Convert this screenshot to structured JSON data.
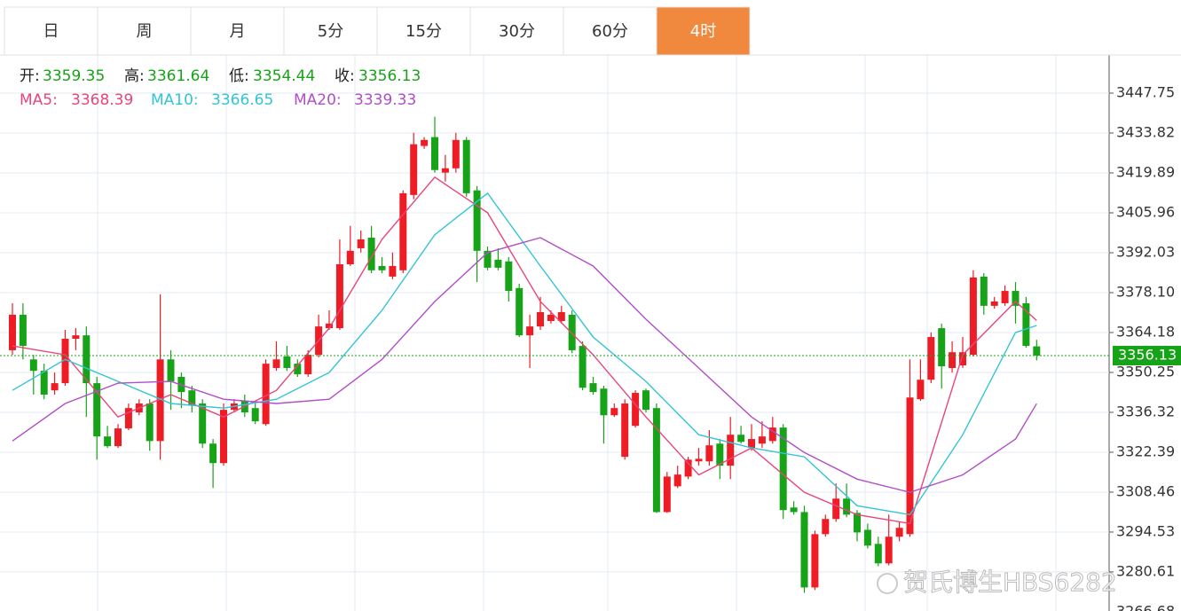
{
  "chart_data": {
    "type": "candlestick",
    "tabs": [
      "日",
      "周",
      "月",
      "5分",
      "15分",
      "30分",
      "60分",
      "4时"
    ],
    "active_tab": 7,
    "ohlc_labels": [
      "开:",
      "高:",
      "低:",
      "收:"
    ],
    "up_color": "#ee1c25",
    "down_color": "#17a317",
    "open": [
      3358.0,
      3370.4,
      3354.8,
      3350.8,
      3344.0,
      3346.5,
      3362.0,
      3363.2,
      3346.5,
      3327.9,
      3324.5,
      3330.7,
      3336.3,
      3339.4,
      3326.3,
      3354.8,
      3348.7,
      3344.0,
      3339.4,
      3325.4,
      3318.6,
      3337.2,
      3340.3,
      3337.8,
      3332.2,
      3351.8,
      3355.8,
      3353.3,
      3349.6,
      3356.4,
      3365.7,
      3365.7,
      3388.0,
      3393.6,
      3397.3,
      3387.4,
      3383.7,
      3385.9,
      3412.2,
      3429.3,
      3432.4,
      3420.0,
      3421.5,
      3431.4,
      3413.8,
      3392.7,
      3389.6,
      3389.0,
      3379.7,
      3363.2,
      3366.3,
      3368.2,
      3368.2,
      3370.4,
      3359.5,
      3346.5,
      3344.6,
      3335.3,
      3320.8,
      3331.6,
      3344.0,
      3337.8,
      3301.5,
      3310.5,
      3313.9,
      3319.2,
      3319.2,
      3325.4,
      3317.7,
      3328.5,
      3323.9,
      3325.4,
      3326.3,
      3331.0,
      3303.1,
      3301.5,
      3275.2,
      3293.8,
      3299.1,
      3306.2,
      3301.2,
      3295.3,
      3290.4,
      3283.6,
      3292.9,
      3293.8,
      3340.9,
      3347.7,
      3365.7,
      3351.8,
      3352.7,
      3356.4,
      3383.7,
      3373.5,
      3374.4,
      3378.7,
      3374.4,
      3359.35
    ],
    "high": [
      3374.4,
      3374.4,
      3356.4,
      3353.3,
      3350.2,
      3365.1,
      3365.7,
      3366.3,
      3348.7,
      3331.6,
      3332.2,
      3339.4,
      3340.9,
      3340.9,
      3377.5,
      3358.0,
      3350.2,
      3345.6,
      3340.9,
      3327.0,
      3339.4,
      3340.9,
      3342.5,
      3339.4,
      3354.8,
      3361.1,
      3359.5,
      3354.8,
      3358.0,
      3370.4,
      3371.9,
      3396.7,
      3401.4,
      3399.8,
      3401.4,
      3390.5,
      3392.1,
      3413.8,
      3433.9,
      3432.4,
      3439.5,
      3426.2,
      3433.9,
      3432.4,
      3415.3,
      3394.2,
      3393.6,
      3390.5,
      3381.2,
      3370.4,
      3376.6,
      3371.9,
      3373.5,
      3371.9,
      3361.1,
      3348.7,
      3345.6,
      3339.4,
      3340.9,
      3344.0,
      3344.6,
      3339.4,
      3315.5,
      3317.7,
      3320.8,
      3323.9,
      3330.1,
      3327.0,
      3334.7,
      3331.6,
      3332.2,
      3333.2,
      3334.7,
      3332.2,
      3305.3,
      3303.7,
      3295.0,
      3300.6,
      3311.5,
      3311.5,
      3302.2,
      3297.5,
      3292.9,
      3300.6,
      3298.1,
      3354.8,
      3354.8,
      3364.2,
      3367.3,
      3361.1,
      3362.6,
      3385.9,
      3384.9,
      3376.6,
      3380.6,
      3381.8,
      3376.6,
      3361.64
    ],
    "low": [
      3356.4,
      3354.8,
      3342.5,
      3340.9,
      3342.5,
      3345.6,
      3358.0,
      3334.7,
      3319.8,
      3323.9,
      3323.9,
      3330.1,
      3335.3,
      3322.9,
      3319.8,
      3337.2,
      3337.8,
      3336.3,
      3323.9,
      3309.9,
      3317.7,
      3336.3,
      3334.7,
      3332.2,
      3331.6,
      3350.8,
      3350.8,
      3348.7,
      3348.7,
      3355.5,
      3365.1,
      3365.1,
      3387.4,
      3392.1,
      3384.9,
      3384.9,
      3382.8,
      3384.9,
      3410.7,
      3428.3,
      3420.0,
      3416.9,
      3420.0,
      3411.6,
      3381.8,
      3385.9,
      3385.9,
      3375.0,
      3362.6,
      3351.8,
      3365.1,
      3367.3,
      3367.3,
      3357.0,
      3344.0,
      3342.5,
      3325.4,
      3334.7,
      3319.8,
      3331.0,
      3336.3,
      3301.2,
      3301.2,
      3309.9,
      3313.0,
      3317.7,
      3317.7,
      3313.0,
      3313.0,
      3325.4,
      3322.9,
      3323.9,
      3325.4,
      3299.1,
      3300.6,
      3273.3,
      3274.3,
      3292.9,
      3298.1,
      3299.7,
      3291.3,
      3288.8,
      3282.6,
      3282.9,
      3291.3,
      3292.9,
      3340.3,
      3346.5,
      3344.6,
      3350.2,
      3351.8,
      3355.8,
      3370.4,
      3372.5,
      3373.5,
      3367.3,
      3358.9,
      3354.44
    ],
    "close": [
      3370.4,
      3359.5,
      3350.8,
      3342.5,
      3346.5,
      3362.0,
      3363.2,
      3346.5,
      3327.9,
      3324.5,
      3330.7,
      3337.8,
      3339.4,
      3326.3,
      3354.8,
      3347.1,
      3343.4,
      3338.7,
      3325.4,
      3318.6,
      3337.2,
      3339.4,
      3336.3,
      3333.2,
      3353.3,
      3354.8,
      3351.8,
      3349.6,
      3356.4,
      3366.3,
      3367.3,
      3388.0,
      3392.7,
      3396.7,
      3385.9,
      3385.9,
      3387.4,
      3412.8,
      3429.9,
      3431.4,
      3420.9,
      3421.5,
      3431.4,
      3412.8,
      3392.7,
      3386.8,
      3386.8,
      3378.7,
      3363.2,
      3366.3,
      3371.3,
      3370.4,
      3371.3,
      3358.0,
      3344.9,
      3343.4,
      3335.3,
      3337.8,
      3339.4,
      3343.1,
      3337.2,
      3301.5,
      3313.9,
      3314.6,
      3319.8,
      3320.1,
      3324.8,
      3317.7,
      3328.5,
      3326.0,
      3327.0,
      3327.9,
      3331.0,
      3302.2,
      3301.5,
      3275.2,
      3293.8,
      3299.1,
      3306.2,
      3300.6,
      3294.4,
      3289.8,
      3283.6,
      3292.9,
      3296.0,
      3341.5,
      3347.7,
      3362.6,
      3352.4,
      3357.3,
      3357.3,
      3383.4,
      3373.5,
      3375.0,
      3378.7,
      3373.5,
      3359.5,
      3356.13
    ],
    "series": [
      {
        "name": "MA5:",
        "color": "#e8457a",
        "x": [
          0,
          5,
          10,
          15,
          20,
          25,
          30,
          35,
          40,
          45,
          50,
          55,
          60,
          65,
          70,
          75,
          80,
          85,
          90,
          95,
          97
        ],
        "values": [
          3359.5,
          3356.4,
          3334.7,
          3342.5,
          3334.7,
          3344.0,
          3365.7,
          3396.7,
          3418.4,
          3406.0,
          3375.0,
          3356.4,
          3334.7,
          3314.5,
          3323.9,
          3308.4,
          3300.6,
          3297.5,
          3356.4,
          3375.0,
          3368.39
        ]
      },
      {
        "name": "MA10:",
        "color": "#33c4d6",
        "x": [
          0,
          5,
          10,
          15,
          20,
          25,
          30,
          35,
          40,
          45,
          50,
          55,
          60,
          65,
          70,
          75,
          80,
          85,
          90,
          95,
          97
        ],
        "values": [
          3344.0,
          3354.8,
          3347.1,
          3339.4,
          3337.8,
          3340.9,
          3350.2,
          3371.9,
          3398.3,
          3412.8,
          3387.4,
          3362.6,
          3347.1,
          3328.5,
          3323.9,
          3320.8,
          3303.7,
          3300.6,
          3328.5,
          3364.2,
          3366.65
        ]
      },
      {
        "name": "MA20:",
        "color": "#b04fc6",
        "x": [
          0,
          5,
          10,
          15,
          20,
          25,
          30,
          35,
          40,
          45,
          50,
          55,
          60,
          65,
          70,
          75,
          80,
          85,
          90,
          95,
          97
        ],
        "values": [
          3326.3,
          3339.4,
          3346.5,
          3347.1,
          3340.9,
          3339.4,
          3340.9,
          3354.8,
          3375.0,
          3392.1,
          3397.3,
          3387.4,
          3368.8,
          3351.8,
          3334.7,
          3322.3,
          3313.0,
          3308.4,
          3314.5,
          3327.0,
          3339.33
        ]
      }
    ],
    "ylim": [
      3266.97,
      3461.06
    ],
    "yticks": [
      3447.75,
      3433.82,
      3419.89,
      3405.96,
      3392.03,
      {
        "value": 3378.1,
        "label": "3378.10"
      },
      3364.18,
      3350.25,
      3336.32,
      3322.39,
      3308.46,
      3294.53,
      3280.61,
      3266.68
    ],
    "grid": true,
    "watermark": "贺氏博生HBS6282"
  }
}
